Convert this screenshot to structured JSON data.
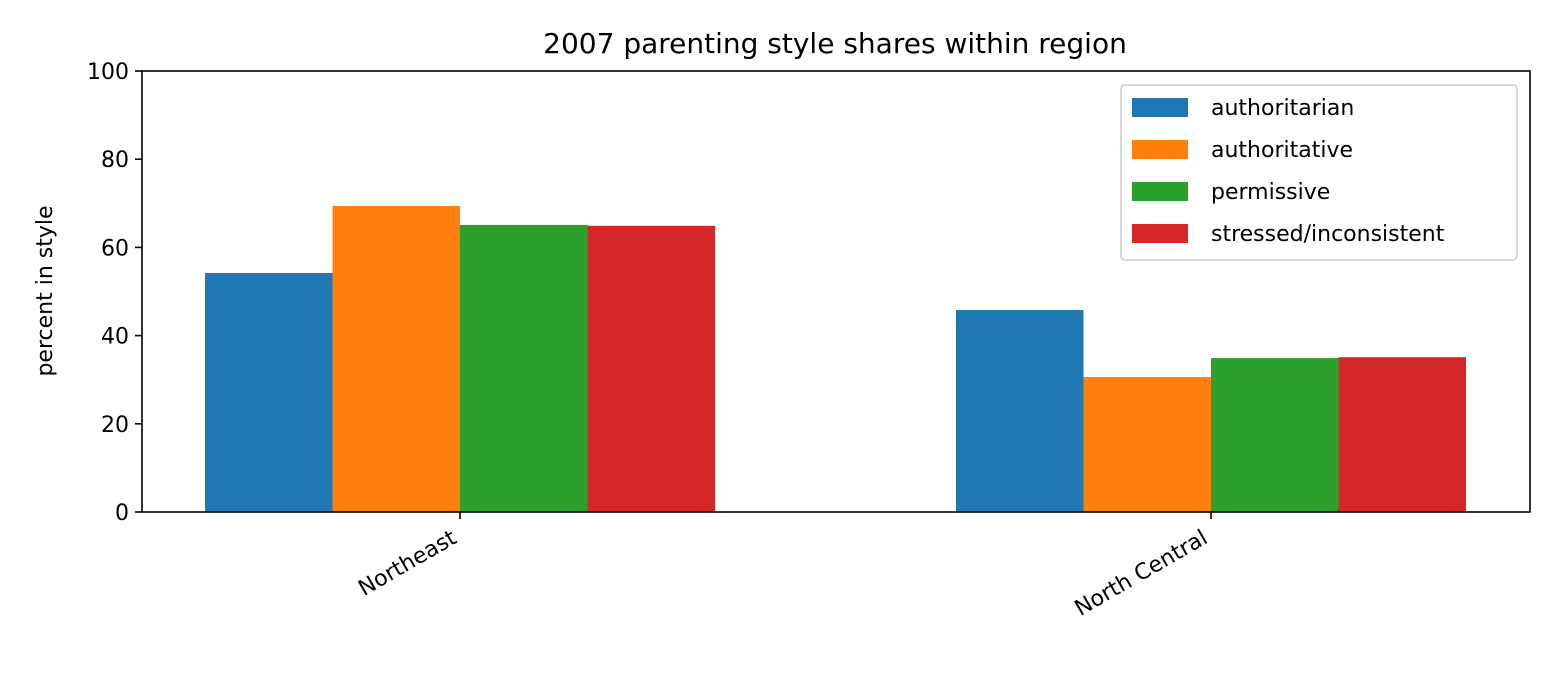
{
  "chart_data": {
    "type": "bar",
    "title": "2007 parenting style shares within region",
    "xlabel": "",
    "ylabel": "percent in style",
    "ylim": [
      0,
      100
    ],
    "yticks": [
      0,
      20,
      40,
      60,
      80,
      100
    ],
    "categories": [
      "Northeast",
      "North Central"
    ],
    "series": [
      {
        "name": "authoritarian",
        "color": "#1f77b4",
        "values": [
          54.2,
          45.8
        ]
      },
      {
        "name": "authoritative",
        "color": "#ff7f0e",
        "values": [
          69.4,
          30.6
        ]
      },
      {
        "name": "permissive",
        "color": "#2ca02c",
        "values": [
          65.1,
          34.9
        ]
      },
      {
        "name": "stressed/inconsistent",
        "color": "#d62728",
        "values": [
          64.9,
          35.1
        ]
      }
    ],
    "grid": false,
    "legend_position": "top-right"
  }
}
